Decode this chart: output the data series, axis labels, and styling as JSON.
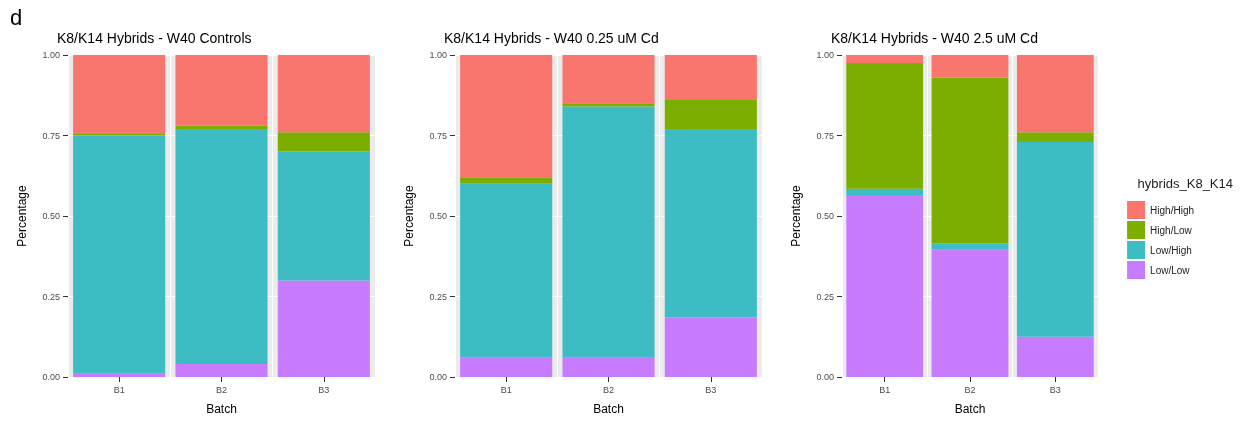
{
  "chart_data": [
    {
      "type": "bar",
      "title": "K8/K14 Hybrids - W40 Controls",
      "annotations": [
        "d"
      ],
      "xlabel": "Batch",
      "ylabel": "Percentage",
      "categories": [
        "B1",
        "B2",
        "B3"
      ],
      "stacked": true,
      "ylim": [
        0,
        1
      ],
      "yticks": [
        {
          "value": 0,
          "label": "0.00"
        },
        {
          "value": 0.25,
          "label": "0.25"
        },
        {
          "value": 0.5,
          "label": "0.50"
        },
        {
          "value": 0.75,
          "label": "0.75"
        },
        {
          "value": 1,
          "label": "1.00"
        }
      ],
      "grid": true,
      "legend": false,
      "series": [
        {
          "color": "#c77cff",
          "values": [
            0.01,
            0.04,
            0.3
          ]
        },
        {
          "color": "#3ebcc4",
          "values": [
            0.74,
            0.73,
            0.4
          ]
        },
        {
          "color": "#7cae00",
          "values": [
            0.005,
            0.01,
            0.06
          ]
        },
        {
          "color": "#f8766d",
          "values": [
            0.245,
            0.22,
            0.24
          ]
        }
      ]
    },
    {
      "type": "bar",
      "title": "K8/K14 Hybrids - W40 0.25 uM Cd",
      "xlabel": "Batch",
      "ylabel": "Percentage",
      "categories": [
        "B1",
        "B2",
        "B3"
      ],
      "stacked": true,
      "ylim": [
        0,
        1
      ],
      "yticks": [
        {
          "value": 0,
          "label": "0.00"
        },
        {
          "value": 0.25,
          "label": "0.25"
        },
        {
          "value": 0.5,
          "label": "0.50"
        },
        {
          "value": 0.75,
          "label": "0.75"
        },
        {
          "value": 1,
          "label": "1.00"
        }
      ],
      "grid": true,
      "legend": false,
      "series": [
        {
          "color": "#c77cff",
          "values": [
            0.06,
            0.06,
            0.185
          ]
        },
        {
          "color": "#3ebcc4",
          "values": [
            0.54,
            0.78,
            0.585
          ]
        },
        {
          "color": "#7cae00",
          "values": [
            0.02,
            0.01,
            0.09
          ]
        },
        {
          "color": "#f8766d",
          "values": [
            0.38,
            0.15,
            0.14
          ]
        }
      ]
    },
    {
      "type": "bar",
      "title": "K8/K14 Hybrids - W40 2.5 uM Cd",
      "xlabel": "Batch",
      "ylabel": "Percentage",
      "categories": [
        "B1",
        "B2",
        "B3"
      ],
      "stacked": true,
      "ylim": [
        0,
        1
      ],
      "yticks": [
        {
          "value": 0,
          "label": "0.00"
        },
        {
          "value": 0.25,
          "label": "0.25"
        },
        {
          "value": 0.5,
          "label": "0.50"
        },
        {
          "value": 0.75,
          "label": "0.75"
        },
        {
          "value": 1,
          "label": "1.00"
        }
      ],
      "grid": true,
      "legend": "right",
      "legend_title": "hybrids_K8_K14",
      "series": [
        {
          "name": "Low/Low",
          "color": "#c77cff",
          "values": [
            0.565,
            0.395,
            0.125
          ]
        },
        {
          "name": "Low/High",
          "color": "#3ebcc4",
          "values": [
            0.02,
            0.02,
            0.605
          ]
        },
        {
          "name": "High/Low",
          "color": "#7cae00",
          "values": [
            0.39,
            0.515,
            0.03
          ]
        },
        {
          "name": "High/High",
          "color": "#f8766d",
          "values": [
            0.025,
            0.07,
            0.24
          ]
        }
      ]
    }
  ]
}
